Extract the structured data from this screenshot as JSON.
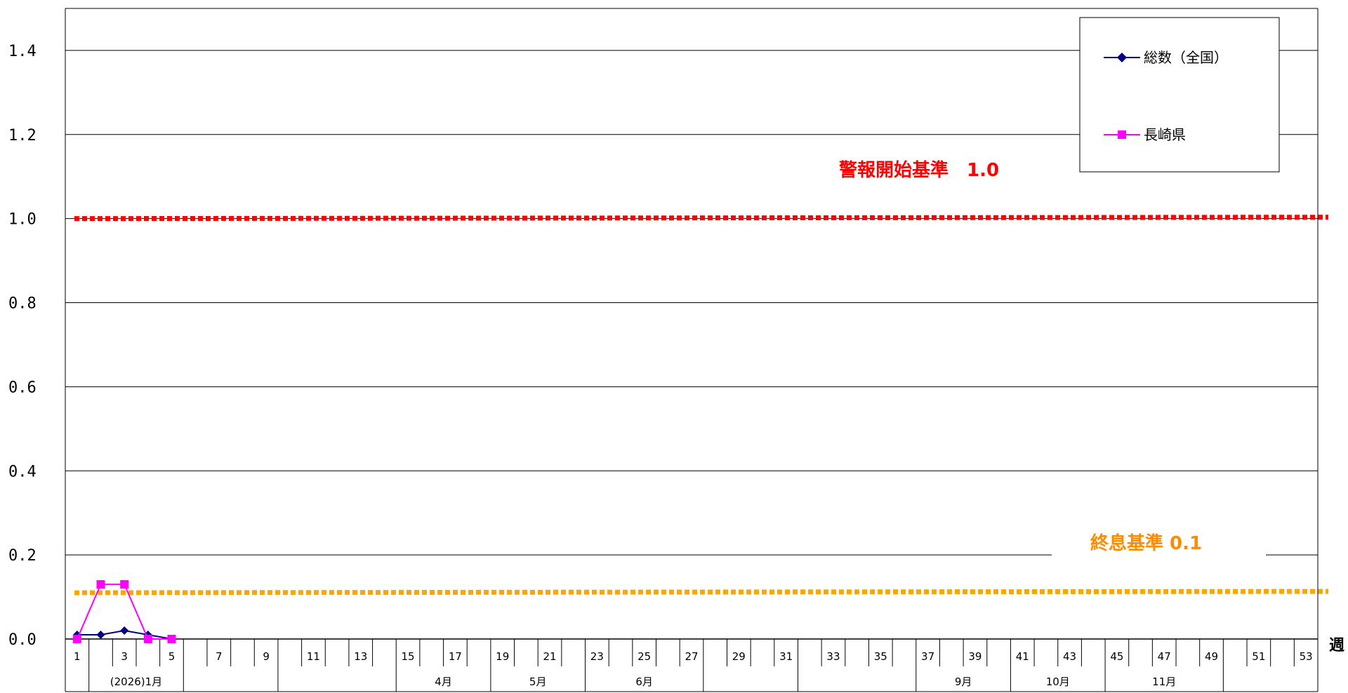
{
  "chart_data": {
    "type": "line",
    "x": [
      1,
      2,
      3,
      4,
      5,
      6,
      7,
      8,
      9,
      10,
      11,
      12,
      13,
      14,
      15,
      16,
      17,
      18,
      19,
      20,
      21,
      22,
      23,
      24,
      25,
      26,
      27,
      28,
      29,
      30,
      31,
      32,
      33,
      34,
      35,
      36,
      37,
      38,
      39,
      40,
      41,
      42,
      43,
      44,
      45,
      46,
      47,
      48,
      49,
      50,
      51,
      52,
      53
    ],
    "x_tick_labels": [
      "1",
      "3",
      "5",
      "7",
      "9",
      "11",
      "13",
      "15",
      "17",
      "19",
      "21",
      "23",
      "25",
      "27",
      "29",
      "31",
      "33",
      "35",
      "37",
      "39",
      "41",
      "43",
      "45",
      "47",
      "49",
      "51",
      "53"
    ],
    "x_unit_label": "週",
    "y_tick_labels": [
      "0.0",
      "0.2",
      "0.4",
      "0.6",
      "0.8",
      "1.0",
      "1.2",
      "1.4"
    ],
    "ylim": [
      0,
      1.5
    ],
    "grid": true,
    "legend_position": "top-right",
    "series": [
      {
        "name": "総数（全国）",
        "color": "#000080",
        "marker": "diamond",
        "x": [
          1,
          2,
          3,
          4,
          5
        ],
        "values": [
          0.01,
          0.01,
          0.02,
          0.01,
          0.0
        ]
      },
      {
        "name": "長崎県",
        "color": "#ff00ff",
        "marker": "square",
        "x": [
          1,
          2,
          3,
          4,
          5
        ],
        "values": [
          0.0,
          0.13,
          0.13,
          0.0,
          0.0
        ]
      }
    ],
    "thresholds": [
      {
        "label": "警報開始基準　1.0",
        "value": 1.0,
        "color": "#ff0000"
      },
      {
        "label": "終息基準 0.1",
        "value": 0.11,
        "color": "#ffa500"
      }
    ],
    "month_labels": [
      {
        "label": "(2026)1月",
        "start_week": 1,
        "end_week": 5
      },
      {
        "label": "",
        "start_week": 5,
        "end_week": 9
      },
      {
        "label": "",
        "start_week": 9,
        "end_week": 14
      },
      {
        "label": "4月",
        "start_week": 14,
        "end_week": 18
      },
      {
        "label": "5月",
        "start_week": 18,
        "end_week": 22
      },
      {
        "label": "6月",
        "start_week": 22,
        "end_week": 27
      },
      {
        "label": "",
        "start_week": 27,
        "end_week": 31
      },
      {
        "label": "",
        "start_week": 31,
        "end_week": 36
      },
      {
        "label": "9月",
        "start_week": 36,
        "end_week": 40
      },
      {
        "label": "10月",
        "start_week": 40,
        "end_week": 44
      },
      {
        "label": "11月",
        "start_week": 44,
        "end_week": 49
      },
      {
        "label": "",
        "start_week": 49,
        "end_week": 53
      }
    ]
  }
}
